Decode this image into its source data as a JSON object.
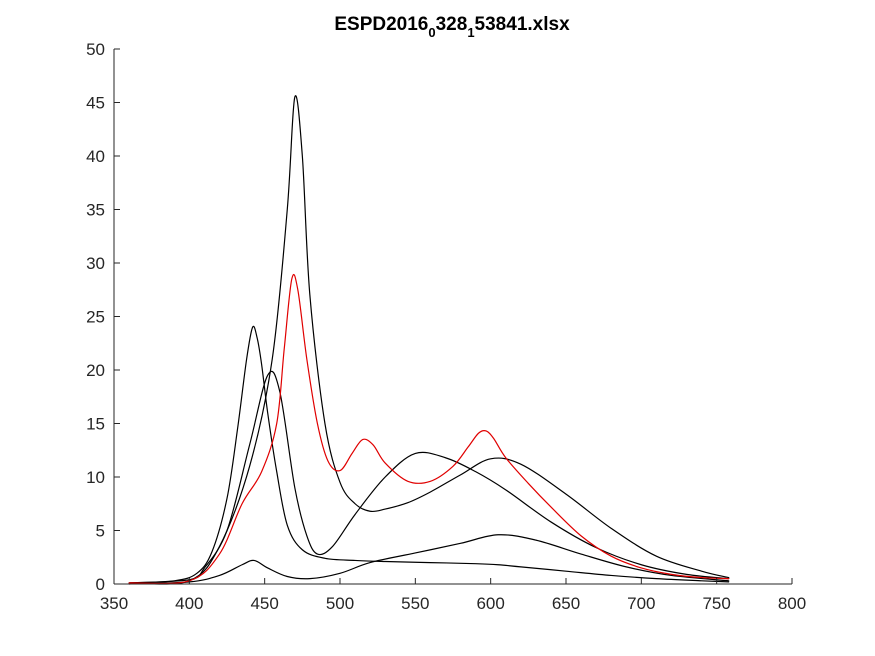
{
  "chart_data": {
    "type": "line",
    "title_parts": [
      "ESPD2016",
      "0",
      "328",
      "1",
      "53841.xlsx"
    ],
    "xlabel": "",
    "ylabel": "",
    "xlim": [
      350,
      800
    ],
    "ylim": [
      0,
      50
    ],
    "xticks": [
      "350",
      "400",
      "450",
      "500",
      "550",
      "600",
      "650",
      "700",
      "750",
      "800"
    ],
    "yticks": [
      "0",
      "5",
      "10",
      "15",
      "20",
      "25",
      "30",
      "35",
      "40",
      "45",
      "50"
    ],
    "grid": false,
    "legend": "none",
    "series": [
      {
        "color": "#000000",
        "x": [
          360,
          390,
          405,
          415,
          425,
          432,
          438,
          442,
          445,
          448,
          452,
          458,
          465,
          475,
          490,
          510,
          530,
          560,
          590,
          605,
          620,
          650,
          680,
          710,
          740,
          758
        ],
        "y": [
          0.1,
          0.3,
          1.0,
          3.0,
          8.0,
          14.5,
          21.0,
          24.0,
          23.0,
          20.5,
          16.0,
          10.5,
          5.5,
          3.2,
          2.4,
          2.2,
          2.1,
          2.0,
          1.9,
          1.8,
          1.6,
          1.2,
          0.8,
          0.5,
          0.3,
          0.2
        ]
      },
      {
        "color": "#000000",
        "x": [
          360,
          400,
          420,
          440,
          455,
          465,
          470,
          475,
          480,
          490,
          500,
          510,
          520,
          530,
          545,
          560,
          580,
          600,
          620,
          650,
          680,
          710,
          740,
          758
        ],
        "y": [
          0.1,
          0.3,
          3.5,
          11.0,
          21.0,
          35.0,
          45.5,
          40.0,
          27.0,
          15.0,
          9.5,
          7.5,
          6.8,
          7.0,
          7.6,
          8.6,
          10.2,
          11.7,
          11.2,
          8.4,
          5.2,
          2.6,
          1.2,
          0.6
        ]
      },
      {
        "color": "#000000",
        "x": [
          360,
          400,
          410,
          425,
          440,
          452,
          460,
          470,
          478,
          485,
          495,
          510,
          530,
          550,
          570,
          590,
          610,
          640,
          670,
          700,
          730,
          758
        ],
        "y": [
          0.1,
          0.4,
          1.5,
          5.0,
          13.0,
          19.5,
          18.0,
          9.0,
          4.5,
          2.8,
          3.5,
          6.5,
          10.0,
          12.2,
          11.8,
          10.5,
          8.8,
          5.8,
          3.4,
          1.8,
          0.9,
          0.5
        ]
      },
      {
        "color": "#000000",
        "x": [
          360,
          400,
          420,
          435,
          443,
          452,
          465,
          480,
          500,
          520,
          550,
          580,
          605,
          630,
          660,
          690,
          720,
          758
        ],
        "y": [
          0.0,
          0.2,
          0.8,
          1.8,
          2.2,
          1.5,
          0.7,
          0.5,
          1.0,
          2.0,
          2.9,
          3.8,
          4.6,
          4.1,
          2.8,
          1.6,
          0.8,
          0.3
        ]
      },
      {
        "color": "#e00000",
        "x": [
          360,
          400,
          420,
          435,
          448,
          458,
          463,
          468,
          472,
          478,
          485,
          492,
          500,
          508,
          515,
          522,
          530,
          545,
          560,
          575,
          585,
          592,
          597,
          602,
          610,
          625,
          640,
          660,
          680,
          700,
          720,
          740,
          758
        ],
        "y": [
          0.1,
          0.3,
          2.8,
          7.5,
          10.5,
          15.0,
          22.0,
          28.5,
          27.5,
          21.0,
          15.0,
          11.5,
          10.6,
          12.2,
          13.5,
          13.0,
          11.3,
          9.6,
          9.6,
          11.0,
          12.8,
          14.1,
          14.3,
          13.6,
          11.8,
          9.4,
          7.2,
          4.5,
          2.6,
          1.5,
          0.9,
          0.6,
          0.5
        ]
      }
    ]
  }
}
